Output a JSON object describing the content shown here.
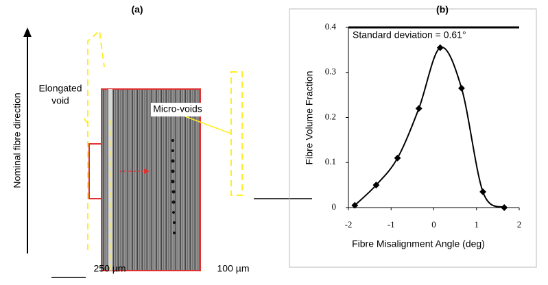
{
  "panel_a": {
    "label": "(a)",
    "direction_label": "Nominal fibre direction",
    "elongated_void": [
      "Elongated",
      "void"
    ],
    "micro_voids": "Micro-voids",
    "scale_left": "250 µm",
    "scale_right": "100 µm"
  },
  "chart_data": {
    "type": "line",
    "title": "(b)",
    "annotation": "Standard deviation = 0.61°",
    "x_label": "Fibre Misalignment Angle (deg)",
    "y_label": "Fibre Volume Fraction",
    "x": [
      -1.85,
      -1.35,
      -0.85,
      -0.35,
      0.15,
      0.65,
      1.15,
      1.65
    ],
    "values": [
      0.005,
      0.05,
      0.11,
      0.22,
      0.355,
      0.265,
      0.035,
      0.0
    ],
    "color": "#000000",
    "smooth": true,
    "xlim": [
      -2,
      2
    ],
    "xticks": [
      -2,
      -1,
      0,
      1,
      2
    ],
    "ylim": [
      0,
      0.4
    ],
    "yticks": [
      0,
      0.1,
      0.2,
      0.3,
      0.4
    ]
  }
}
